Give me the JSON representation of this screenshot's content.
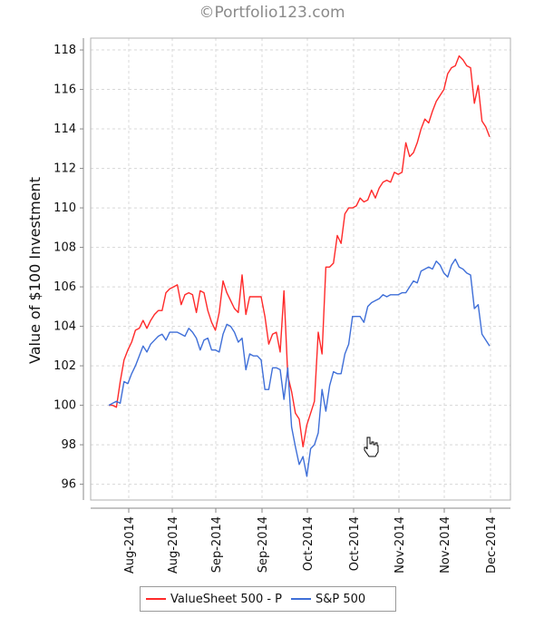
{
  "watermark": "©Portfolio123.com",
  "chart_data": {
    "type": "line",
    "title": "",
    "xlabel": "",
    "ylabel": "Value of $100 Investment",
    "ylim": [
      95.2,
      118.6
    ],
    "y_ticks": [
      96,
      98,
      100,
      102,
      104,
      106,
      108,
      110,
      112,
      114,
      116,
      118
    ],
    "x_ticks": [
      "Aug-2014",
      "Aug-2014",
      "Sep-2014",
      "Sep-2014",
      "Oct-2014",
      "Oct-2014",
      "Nov-2014",
      "Nov-2014",
      "Dec-2014"
    ],
    "grid": true,
    "legend_position": "bottom",
    "series": [
      {
        "name": "ValueSheet 500 - P",
        "color": "#ff2a2a",
        "values": [
          100.0,
          100.0,
          99.9,
          101.2,
          102.3,
          102.8,
          103.2,
          103.8,
          103.9,
          104.3,
          103.9,
          104.3,
          104.6,
          104.8,
          104.8,
          105.7,
          105.9,
          106.0,
          106.1,
          105.1,
          105.6,
          105.7,
          105.6,
          104.7,
          105.8,
          105.7,
          104.8,
          104.2,
          103.8,
          104.7,
          106.3,
          105.7,
          105.3,
          104.9,
          104.7,
          106.6,
          104.6,
          105.5,
          105.5,
          105.5,
          105.5,
          104.5,
          103.1,
          103.6,
          103.7,
          102.7,
          105.8,
          101.5,
          100.7,
          99.6,
          99.3,
          97.9,
          99.0,
          99.6,
          100.2,
          103.7,
          102.6,
          107.0,
          107.0,
          107.2,
          108.6,
          108.2,
          109.7,
          110.0,
          110.0,
          110.1,
          110.5,
          110.3,
          110.4,
          110.9,
          110.5,
          111.0,
          111.3,
          111.4,
          111.3,
          111.8,
          111.7,
          111.8,
          113.3,
          112.6,
          112.8,
          113.3,
          114.0,
          114.5,
          114.3,
          114.9,
          115.4,
          115.7,
          116.0,
          116.8,
          117.1,
          117.2,
          117.7,
          117.5,
          117.2,
          117.1,
          115.3,
          116.2,
          114.4,
          114.1,
          113.6
        ]
      },
      {
        "name": "S&P 500",
        "color": "#3f6fd8",
        "values": [
          100.0,
          100.1,
          100.2,
          100.1,
          101.2,
          101.1,
          101.6,
          102.0,
          102.5,
          103.0,
          102.7,
          103.1,
          103.3,
          103.5,
          103.6,
          103.3,
          103.7,
          103.7,
          103.7,
          103.6,
          103.5,
          103.9,
          103.7,
          103.4,
          102.8,
          103.3,
          103.4,
          102.8,
          102.8,
          102.7,
          103.6,
          104.1,
          104.0,
          103.7,
          103.2,
          103.4,
          101.8,
          102.6,
          102.5,
          102.5,
          102.3,
          100.8,
          100.8,
          101.9,
          101.9,
          101.8,
          100.3,
          101.9,
          98.9,
          97.9,
          97.0,
          97.4,
          96.4,
          97.8,
          98.0,
          98.6,
          100.8,
          99.7,
          101.0,
          101.7,
          101.6,
          101.6,
          102.6,
          103.1,
          104.5,
          104.5,
          104.5,
          104.2,
          105.0,
          105.2,
          105.3,
          105.4,
          105.6,
          105.5,
          105.6,
          105.6,
          105.6,
          105.7,
          105.7,
          106.0,
          106.3,
          106.2,
          106.8,
          106.9,
          107.0,
          106.9,
          107.3,
          107.1,
          106.7,
          106.5,
          107.1,
          107.4,
          107.0,
          106.9,
          106.7,
          106.6,
          104.9,
          105.1,
          103.6,
          103.3,
          103.0
        ]
      }
    ]
  }
}
